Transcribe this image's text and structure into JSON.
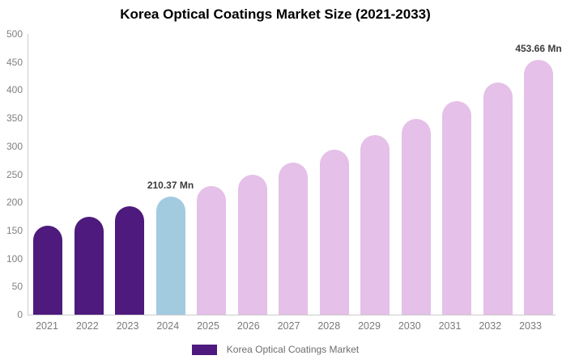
{
  "chart_data": {
    "type": "bar",
    "title": "Korea Optical Coatings Market Size (2021-2033)",
    "legend": "Korea Optical Coatings Market",
    "xlabel": "",
    "ylabel": "",
    "unit": "Mn",
    "categories": [
      "2021",
      "2022",
      "2023",
      "2024",
      "2025",
      "2026",
      "2027",
      "2028",
      "2029",
      "2030",
      "2031",
      "2032",
      "2033"
    ],
    "values": [
      158,
      175,
      193,
      210.37,
      229,
      249,
      271,
      294,
      320,
      349,
      380,
      414,
      453.66
    ],
    "bar_colors": [
      "#4e1a7d",
      "#4e1a7d",
      "#4e1a7d",
      "#a3cbe0",
      "#e5c0e8",
      "#e5c0e8",
      "#e5c0e8",
      "#e5c0e8",
      "#e5c0e8",
      "#e5c0e8",
      "#e5c0e8",
      "#e5c0e8",
      "#e5c0e8"
    ],
    "data_labels": [
      {
        "index": 3,
        "text": "210.37 Mn"
      },
      {
        "index": 12,
        "text": "453.66 Mn"
      }
    ],
    "ylim": [
      0,
      500
    ],
    "yticks": [
      0,
      50,
      100,
      150,
      200,
      250,
      300,
      350,
      400,
      450,
      500
    ],
    "grid": false,
    "legend_position": "bottom"
  },
  "colors": {
    "historical_purple": "#4e1a7d",
    "base_year_blue": "#a3cbe0",
    "forecast_pink": "#e5c0e8",
    "axis_line": "#cccccc",
    "tick_text": "#808080",
    "x_tick_text": "#7a7a7a",
    "legend_text": "#6e6e6e",
    "data_label_text": "#3c3c3c",
    "title_text": "#000000",
    "background": "#ffffff"
  }
}
